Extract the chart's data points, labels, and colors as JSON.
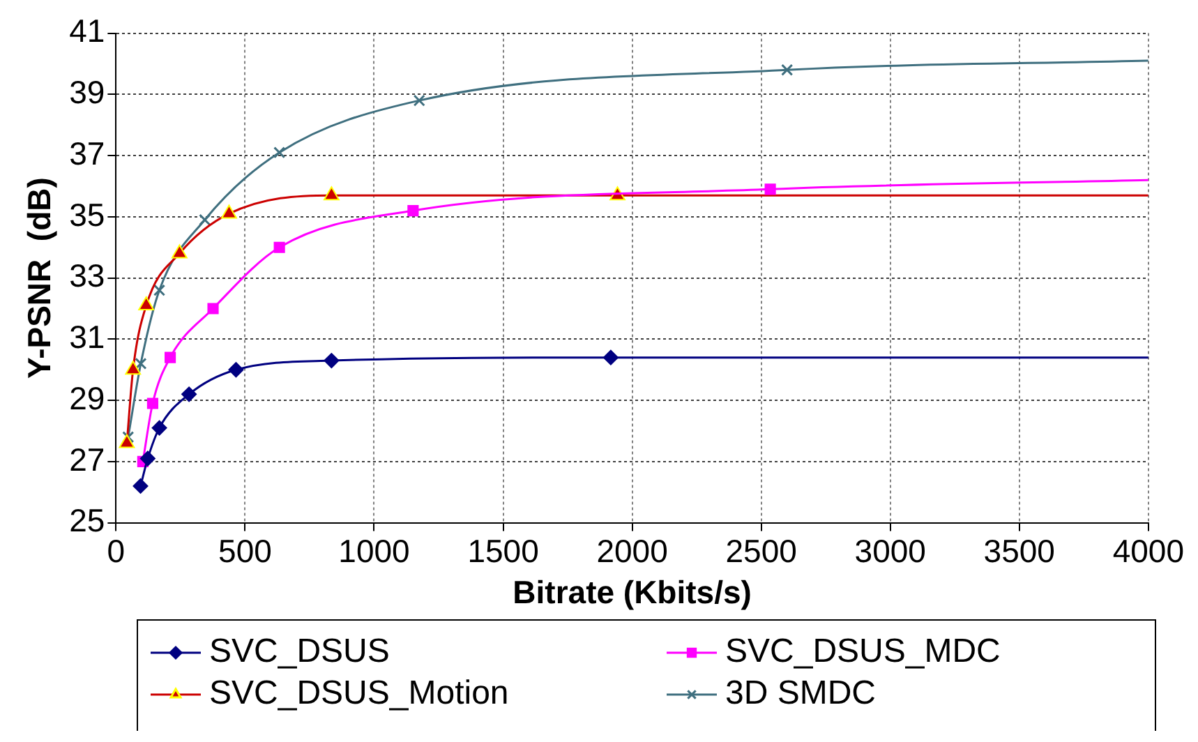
{
  "chart_data": {
    "type": "line",
    "xlabel": "Bitrate (Kbits/s)",
    "ylabel": "Y-PSNR  (dB)",
    "xlim": [
      0,
      4000
    ],
    "xticks": [
      0,
      500,
      1000,
      1500,
      2000,
      2500,
      3000,
      3500,
      4000
    ],
    "ylim": [
      25,
      41
    ],
    "yticks": [
      25,
      27,
      29,
      31,
      33,
      35,
      37,
      39,
      41
    ],
    "grid": true,
    "legend": "bottom",
    "series": [
      {
        "name": "SVC_DSUS",
        "color": "#000080",
        "marker": "diamond",
        "x": [
          95,
          123,
          168,
          283,
          465,
          835,
          1917,
          4000
        ],
        "values": [
          26.2,
          27.1,
          28.1,
          29.2,
          30.0,
          30.3,
          30.4,
          30.4
        ]
      },
      {
        "name": "SVC_DSUS_MDC",
        "color": "#ff00ff",
        "marker": "square",
        "x": [
          104,
          142,
          210,
          376,
          633,
          1151,
          2535,
          4000
        ],
        "values": [
          27.0,
          28.9,
          30.4,
          32.0,
          34.0,
          35.2,
          35.9,
          36.2
        ]
      },
      {
        "name": "SVC_DSUS_Motion",
        "color": "#cc0000",
        "marker": "triangle",
        "x": [
          42,
          66,
          117,
          246,
          438,
          835,
          1943,
          4000
        ],
        "values": [
          27.6,
          30.0,
          32.1,
          33.8,
          35.1,
          35.7,
          35.7,
          35.7
        ]
      },
      {
        "name": "3D SMDC",
        "color": "#3f6f7f",
        "marker": "cross",
        "x": [
          47,
          96,
          168,
          344,
          633,
          1175,
          2600,
          4000
        ],
        "values": [
          27.8,
          30.2,
          32.6,
          34.9,
          37.1,
          38.8,
          39.8,
          40.1
        ]
      }
    ]
  }
}
